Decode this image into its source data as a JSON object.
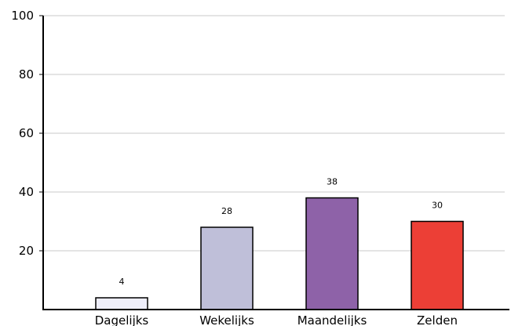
{
  "chart_data": {
    "type": "bar",
    "title": "",
    "xlabel": "",
    "ylabel": "",
    "categories": [
      "Dagelijks",
      "Wekelijks",
      "Maandelijks",
      "Zelden"
    ],
    "values": [
      4,
      28,
      38,
      30
    ],
    "data_labels": [
      "4",
      "28",
      "38",
      "30"
    ],
    "colors": [
      "#eeeefa",
      "#bfbfd9",
      "#8e62a8",
      "#ec3f36"
    ],
    "ylim": [
      0,
      100
    ],
    "yticks": [
      20,
      40,
      60,
      80,
      100
    ],
    "ytick_labels": [
      "20",
      "40",
      "60",
      "80",
      "100"
    ],
    "grid": true,
    "grid_color": "#c8c8c8",
    "legend": "none"
  }
}
